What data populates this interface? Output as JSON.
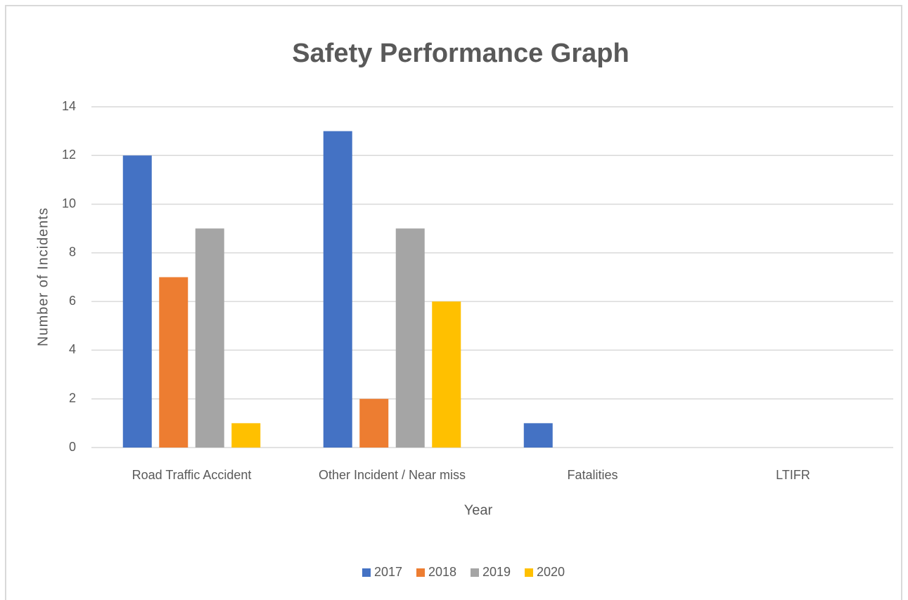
{
  "chart_data": {
    "type": "bar",
    "title": "Safety Performance Graph",
    "x_label": "Year",
    "y_label": "Number  of Incidents",
    "categories": [
      "Road Traffic Accident",
      "Other Incident / Near miss",
      "Fatalities",
      "LTIFR"
    ],
    "series": [
      {
        "name": "2017",
        "color": "#4472c4",
        "values": [
          12,
          13,
          1,
          0
        ]
      },
      {
        "name": "2018",
        "color": "#ed7d31",
        "values": [
          7,
          2,
          0,
          0
        ]
      },
      {
        "name": "2019",
        "color": "#a5a5a5",
        "values": [
          9,
          9,
          0,
          0
        ]
      },
      {
        "name": "2020",
        "color": "#ffc000",
        "values": [
          1,
          6,
          0,
          0
        ]
      }
    ],
    "ylim": [
      0,
      14
    ],
    "yticks": [
      0,
      2,
      4,
      6,
      8,
      10,
      12,
      14
    ],
    "grid": true,
    "legend": "bottom"
  }
}
